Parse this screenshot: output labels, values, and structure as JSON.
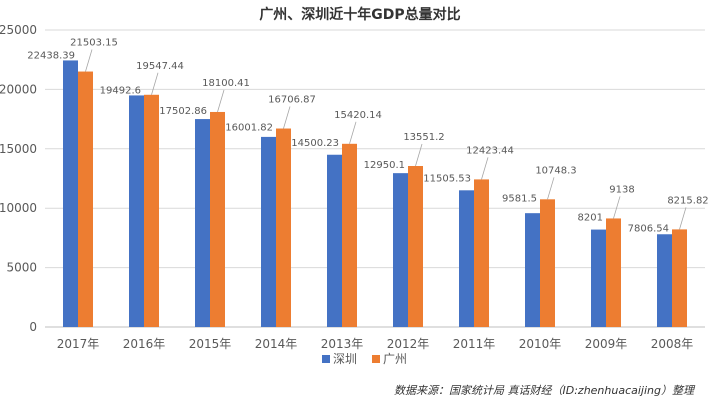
{
  "chart_data": {
    "type": "bar",
    "title": "广州、深圳近十年GDP总量对比",
    "xlabel": "",
    "ylabel": "",
    "categories": [
      "2017年",
      "2016年",
      "2015年",
      "2014年",
      "2013年",
      "2012年",
      "2011年",
      "2010年",
      "2009年",
      "2008年"
    ],
    "series": [
      {
        "name": "深圳",
        "color": "#4472c4",
        "values": [
          22438.39,
          19492.6,
          17502.86,
          16001.82,
          14500.23,
          12950.1,
          11505.53,
          9581.5,
          8201,
          7806.54
        ],
        "labels": [
          "22438.39",
          "19492.6",
          "17502.86",
          "16001.82",
          "14500.23",
          "12950.1",
          "11505.53",
          "9581.5",
          "8201",
          "7806.54"
        ]
      },
      {
        "name": "广州",
        "color": "#ed7d31",
        "values": [
          21503.15,
          19547.44,
          18100.41,
          16706.87,
          15420.14,
          13551.2,
          12423.44,
          10748.3,
          9138,
          8215.82
        ],
        "labels": [
          "21503.15",
          "19547.44",
          "18100.41",
          "16706.87",
          "15420.14",
          "13551.2",
          "12423.44",
          "10748.3",
          "9138",
          "8215.82"
        ]
      }
    ],
    "ylim": [
      0,
      25000
    ],
    "yticks": [
      0,
      5000,
      10000,
      15000,
      20000,
      25000
    ],
    "grid": true,
    "legend": "bottom"
  },
  "source_note": "数据来源：国家统计局  真话财经（ID:zhenhuacaijing）整理"
}
